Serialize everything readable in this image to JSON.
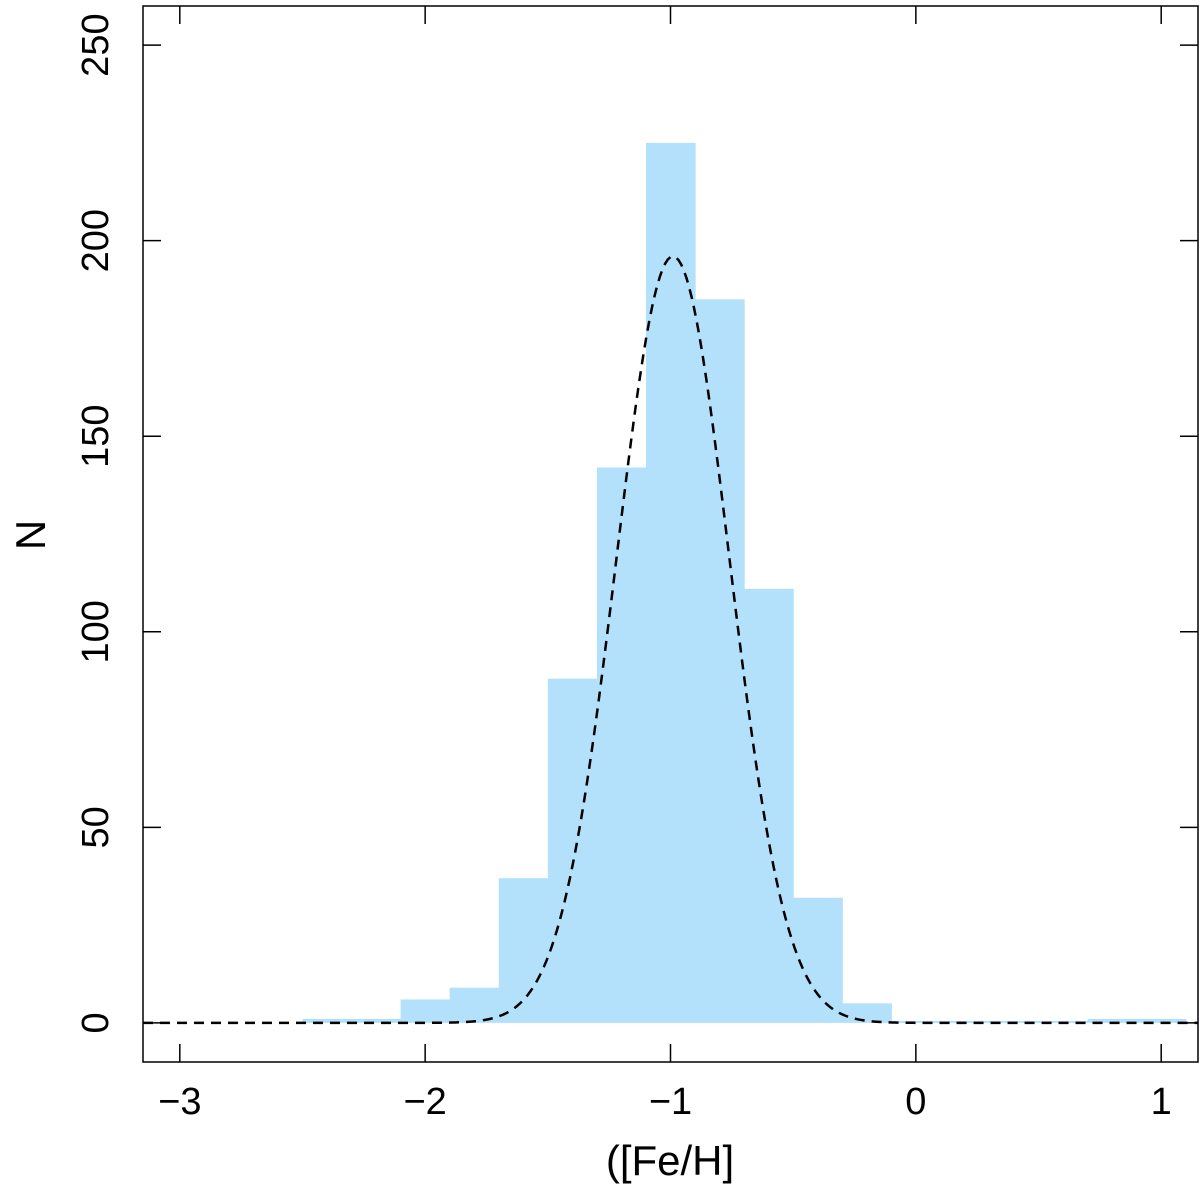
{
  "chart_data": {
    "type": "bar",
    "title": "",
    "xlabel": "([Fe/H]",
    "ylabel": "N",
    "xlim": [
      -3.15,
      1.15
    ],
    "ylim": [
      -10,
      260
    ],
    "grid": false,
    "colors": {
      "bars": "#b3e1fb",
      "fit": "#000000"
    },
    "x_ticks": [
      {
        "value": -3,
        "label": "−3"
      },
      {
        "value": -2,
        "label": "−2"
      },
      {
        "value": -1,
        "label": "−1"
      },
      {
        "value": 0,
        "label": "0"
      },
      {
        "value": 1,
        "label": "1"
      }
    ],
    "y_ticks": [
      {
        "value": 0,
        "label": "0"
      },
      {
        "value": 50,
        "label": "50"
      },
      {
        "value": 100,
        "label": "100"
      },
      {
        "value": 150,
        "label": "150"
      },
      {
        "value": 200,
        "label": "200"
      },
      {
        "value": 250,
        "label": "250"
      }
    ],
    "bins": [
      {
        "x0": -2.5,
        "x1": -2.3,
        "count": 1
      },
      {
        "x0": -2.3,
        "x1": -2.1,
        "count": 1
      },
      {
        "x0": -2.1,
        "x1": -1.9,
        "count": 6
      },
      {
        "x0": -1.9,
        "x1": -1.7,
        "count": 9
      },
      {
        "x0": -1.7,
        "x1": -1.5,
        "count": 37
      },
      {
        "x0": -1.5,
        "x1": -1.3,
        "count": 88
      },
      {
        "x0": -1.3,
        "x1": -1.1,
        "count": 142
      },
      {
        "x0": -1.1,
        "x1": -0.9,
        "count": 225
      },
      {
        "x0": -0.9,
        "x1": -0.7,
        "count": 185
      },
      {
        "x0": -0.7,
        "x1": -0.5,
        "count": 111
      },
      {
        "x0": -0.5,
        "x1": -0.3,
        "count": 32
      },
      {
        "x0": -0.3,
        "x1": -0.1,
        "count": 5
      },
      {
        "x0": -0.1,
        "x1": 0.1,
        "count": 0.5
      },
      {
        "x0": 0.1,
        "x1": 0.3,
        "count": 0.5
      },
      {
        "x0": 0.3,
        "x1": 0.5,
        "count": 0.5
      },
      {
        "x0": 0.5,
        "x1": 0.7,
        "count": 0.5
      },
      {
        "x0": 0.7,
        "x1": 0.9,
        "count": 1
      },
      {
        "x0": 0.9,
        "x1": 1.1,
        "count": 1
      }
    ],
    "fit": {
      "type": "gaussian",
      "style": "dashed",
      "mean": -0.99,
      "sigma": 0.23,
      "peak": 196,
      "x_range": [
        -3.15,
        1.15
      ]
    }
  }
}
